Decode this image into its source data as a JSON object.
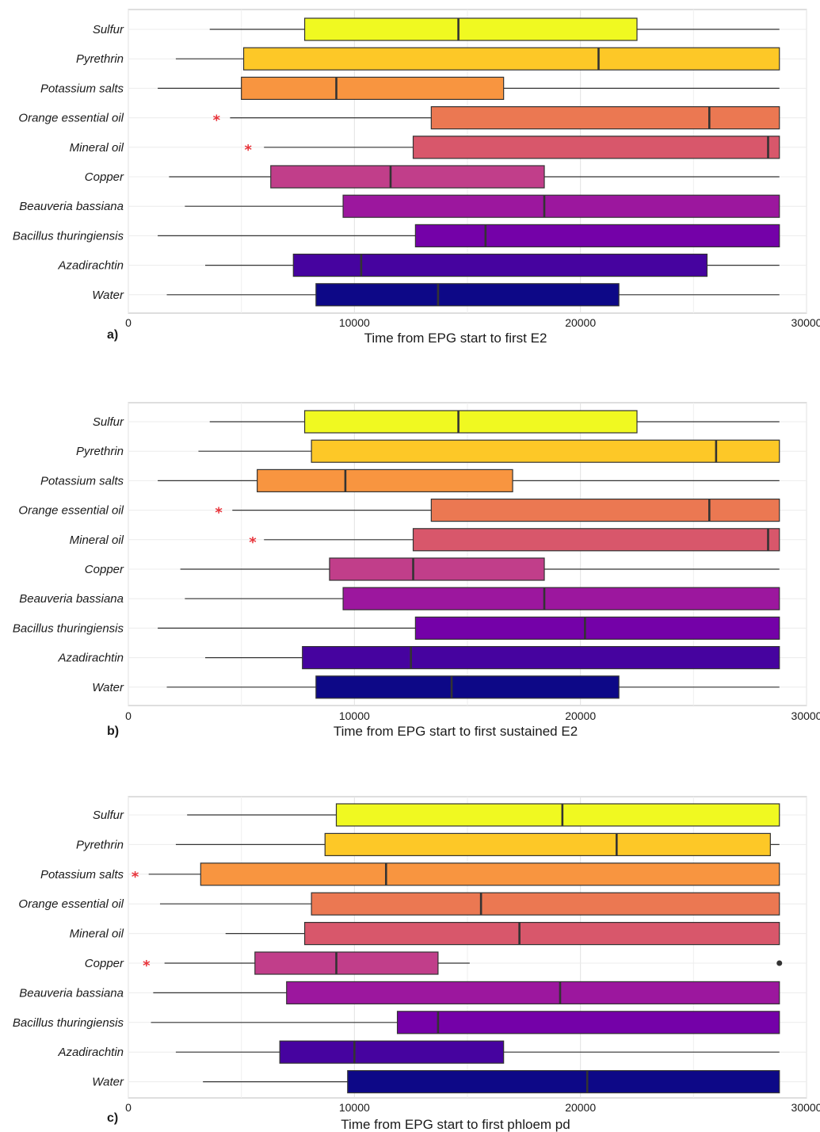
{
  "palette": {
    "Sulfur": "#f0f921",
    "Pyrethrin": "#fdc827",
    "Potassium salts": "#f89540",
    "Orange essential oil": "#eb7852",
    "Mineral oil": "#d8576b",
    "Copper": "#c13e8a",
    "Beauveria bassiana": "#9c179e",
    "Bacillus thuringiensis": "#7401a8",
    "Azadirachtin": "#46039f",
    "Water": "#0d0887",
    "star": "#e8333a"
  },
  "chart_data": [
    {
      "type": "boxplot",
      "panel": "a)",
      "xlabel": "Time from EPG start to first E2",
      "xlim": [
        0,
        30000
      ],
      "xticks": [
        0,
        10000,
        20000,
        30000
      ],
      "categories": [
        "Sulfur",
        "Pyrethrin",
        "Potassium salts",
        "Orange essential oil",
        "Mineral oil",
        "Copper",
        "Beauveria bassiana",
        "Bacillus thuringiensis",
        "Azadirachtin",
        "Water"
      ],
      "boxes": [
        {
          "whisker_low": 3600,
          "q1": 7800,
          "median": 14600,
          "q3": 22500,
          "whisker_high": 28800
        },
        {
          "whisker_low": 2100,
          "q1": 5100,
          "median": 20800,
          "q3": 28800,
          "whisker_high": 28800
        },
        {
          "whisker_low": 1300,
          "q1": 5000,
          "median": 9200,
          "q3": 16600,
          "whisker_high": 28800
        },
        {
          "whisker_low": 4500,
          "q1": 13400,
          "median": 25700,
          "q3": 28800,
          "whisker_high": 28800
        },
        {
          "whisker_low": 6000,
          "q1": 12600,
          "median": 28300,
          "q3": 28800,
          "whisker_high": 28800
        },
        {
          "whisker_low": 1800,
          "q1": 6300,
          "median": 11600,
          "q3": 18400,
          "whisker_high": 28800
        },
        {
          "whisker_low": 2500,
          "q1": 9500,
          "median": 18400,
          "q3": 28800,
          "whisker_high": 28800
        },
        {
          "whisker_low": 1300,
          "q1": 12700,
          "median": 15800,
          "q3": 28800,
          "whisker_high": 28800
        },
        {
          "whisker_low": 3400,
          "q1": 7300,
          "median": 10300,
          "q3": 25600,
          "whisker_high": 28800
        },
        {
          "whisker_low": 1700,
          "q1": 8300,
          "median": 13700,
          "q3": 21700,
          "whisker_high": 28800
        }
      ],
      "outliers": [],
      "significance": [
        {
          "category": "Orange essential oil",
          "x": 3900,
          "label": "*"
        },
        {
          "category": "Mineral oil",
          "x": 5300,
          "label": "*"
        }
      ]
    },
    {
      "type": "boxplot",
      "panel": "b)",
      "xlabel": "Time from EPG start to first sustained E2",
      "xlim": [
        0,
        30000
      ],
      "xticks": [
        0,
        10000,
        20000,
        30000
      ],
      "categories": [
        "Sulfur",
        "Pyrethrin",
        "Potassium salts",
        "Orange essential oil",
        "Mineral oil",
        "Copper",
        "Beauveria bassiana",
        "Bacillus thuringiensis",
        "Azadirachtin",
        "Water"
      ],
      "boxes": [
        {
          "whisker_low": 3600,
          "q1": 7800,
          "median": 14600,
          "q3": 22500,
          "whisker_high": 28800
        },
        {
          "whisker_low": 3100,
          "q1": 8100,
          "median": 26000,
          "q3": 28800,
          "whisker_high": 28800
        },
        {
          "whisker_low": 1300,
          "q1": 5700,
          "median": 9600,
          "q3": 17000,
          "whisker_high": 28800
        },
        {
          "whisker_low": 4600,
          "q1": 13400,
          "median": 25700,
          "q3": 28800,
          "whisker_high": 28800
        },
        {
          "whisker_low": 6000,
          "q1": 12600,
          "median": 28300,
          "q3": 28800,
          "whisker_high": 28800
        },
        {
          "whisker_low": 2300,
          "q1": 8900,
          "median": 12600,
          "q3": 18400,
          "whisker_high": 28800
        },
        {
          "whisker_low": 2500,
          "q1": 9500,
          "median": 18400,
          "q3": 28800,
          "whisker_high": 28800
        },
        {
          "whisker_low": 1300,
          "q1": 12700,
          "median": 20200,
          "q3": 28800,
          "whisker_high": 28800
        },
        {
          "whisker_low": 3400,
          "q1": 7700,
          "median": 12500,
          "q3": 28800,
          "whisker_high": 28800
        },
        {
          "whisker_low": 1700,
          "q1": 8300,
          "median": 14300,
          "q3": 21700,
          "whisker_high": 28800
        }
      ],
      "outliers": [],
      "significance": [
        {
          "category": "Orange essential oil",
          "x": 4000,
          "label": "*"
        },
        {
          "category": "Mineral oil",
          "x": 5500,
          "label": "*"
        }
      ]
    },
    {
      "type": "boxplot",
      "panel": "c)",
      "xlabel": "Time from EPG start to first phloem pd",
      "xlim": [
        0,
        30000
      ],
      "xticks": [
        0,
        10000,
        20000,
        30000
      ],
      "categories": [
        "Sulfur",
        "Pyrethrin",
        "Potassium salts",
        "Orange essential oil",
        "Mineral oil",
        "Copper",
        "Beauveria bassiana",
        "Bacillus thuringiensis",
        "Azadirachtin",
        "Water"
      ],
      "boxes": [
        {
          "whisker_low": 2600,
          "q1": 9200,
          "median": 19200,
          "q3": 28800,
          "whisker_high": 28800
        },
        {
          "whisker_low": 2100,
          "q1": 8700,
          "median": 21600,
          "q3": 28400,
          "whisker_high": 28800
        },
        {
          "whisker_low": 900,
          "q1": 3200,
          "median": 11400,
          "q3": 28800,
          "whisker_high": 28800
        },
        {
          "whisker_low": 1400,
          "q1": 8100,
          "median": 15600,
          "q3": 28800,
          "whisker_high": 28800
        },
        {
          "whisker_low": 4300,
          "q1": 7800,
          "median": 17300,
          "q3": 28800,
          "whisker_high": 28800
        },
        {
          "whisker_low": 1600,
          "q1": 5600,
          "median": 9200,
          "q3": 13700,
          "whisker_high": 15100
        },
        {
          "whisker_low": 1100,
          "q1": 7000,
          "median": 19100,
          "q3": 28800,
          "whisker_high": 28800
        },
        {
          "whisker_low": 1000,
          "q1": 11900,
          "median": 13700,
          "q3": 28800,
          "whisker_high": 28800
        },
        {
          "whisker_low": 2100,
          "q1": 6700,
          "median": 10000,
          "q3": 16600,
          "whisker_high": 28800
        },
        {
          "whisker_low": 3300,
          "q1": 9700,
          "median": 20300,
          "q3": 28800,
          "whisker_high": 28800
        }
      ],
      "outliers": [
        {
          "category": "Copper",
          "x": 28800
        }
      ],
      "significance": [
        {
          "category": "Potassium salts",
          "x": 300,
          "label": "*"
        },
        {
          "category": "Copper",
          "x": 800,
          "label": "*"
        }
      ]
    }
  ]
}
